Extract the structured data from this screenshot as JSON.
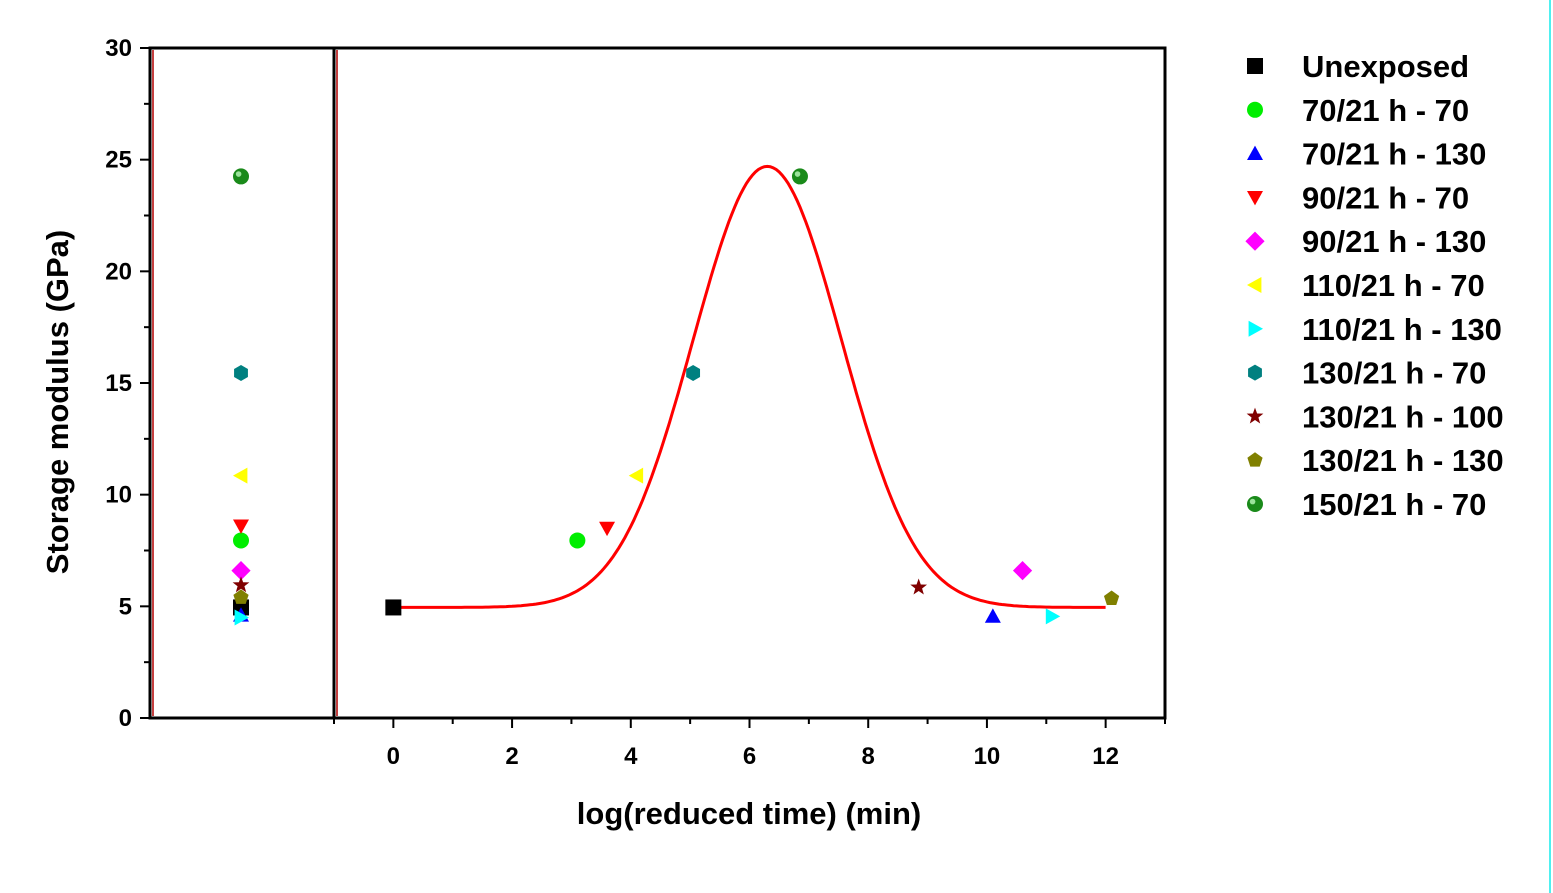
{
  "chart_data": {
    "type": "scatter",
    "xlabel": "log(reduced time) (min)",
    "ylabel": "Storage modulus (GPa)",
    "xlim": [
      -1,
      13
    ],
    "ylim": [
      0,
      30
    ],
    "xticks": [
      "0",
      "2",
      "4",
      "6",
      "8",
      "10",
      "12"
    ],
    "yticks": [
      "0",
      "5",
      "10",
      "15",
      "20",
      "25",
      "30"
    ],
    "grid": false,
    "legend_position": "right",
    "series": [
      {
        "name": "Unexposed",
        "marker": "square",
        "color": "#000000",
        "x": 0,
        "y": 4.95,
        "y_unshifted": 4.95
      },
      {
        "name": "70/21 h - 70",
        "marker": "circle",
        "color": "#00ee00",
        "x": 3.1,
        "y": 7.95,
        "y_unshifted": 7.95
      },
      {
        "name": "70/21 h - 130",
        "marker": "triangle-up",
        "color": "#0000ff",
        "x": 10.1,
        "y": 4.55,
        "y_unshifted": 4.6
      },
      {
        "name": "90/21 h - 70",
        "marker": "triangle-down",
        "color": "#ff0000",
        "x": 3.6,
        "y": 8.5,
        "y_unshifted": 8.6
      },
      {
        "name": "90/21 h - 130",
        "marker": "diamond",
        "color": "#ff00ff",
        "x": 10.6,
        "y": 6.6,
        "y_unshifted": 6.6
      },
      {
        "name": "110/21 h - 70",
        "marker": "triangle-left",
        "color": "#ffff00",
        "x": 4.1,
        "y": 10.85,
        "y_unshifted": 10.85
      },
      {
        "name": "110/21 h - 130",
        "marker": "triangle-right",
        "color": "#00ffff",
        "x": 11.1,
        "y": 4.55,
        "y_unshifted": 4.5
      },
      {
        "name": "130/21 h - 70",
        "marker": "hexagon",
        "color": "#008080",
        "x": 5.05,
        "y": 15.45,
        "y_unshifted": 15.45
      },
      {
        "name": "130/21 h - 100",
        "marker": "star",
        "color": "#800000",
        "x": 8.85,
        "y": 5.85,
        "y_unshifted": 5.95
      },
      {
        "name": "130/21 h - 130",
        "marker": "pentagon",
        "color": "#808000",
        "x": 12.1,
        "y": 5.35,
        "y_unshifted": 5.4
      },
      {
        "name": "150/21 h - 70",
        "marker": "sphere",
        "color": "#1a8a1a",
        "x": 6.85,
        "y": 24.25,
        "y_unshifted": 24.25
      }
    ],
    "fit_curve": {
      "type": "gaussian",
      "color": "#ff0000",
      "baseline": 4.95,
      "amplitude": 19.75,
      "center": 6.3,
      "sigma": 1.25,
      "x_range": [
        0,
        12
      ]
    }
  }
}
